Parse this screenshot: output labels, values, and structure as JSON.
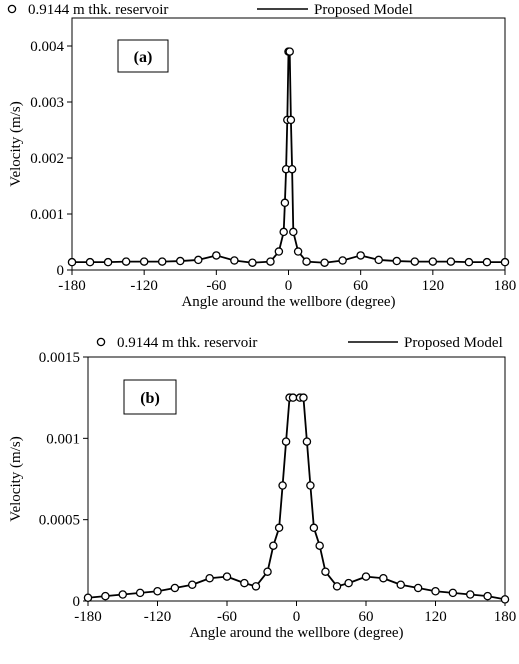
{
  "chart_data": [
    {
      "type": "line",
      "panel_label": "(a)",
      "xlabel": "Angle around the wellbore (degree)",
      "ylabel": "Velocity (m/s)",
      "xlim": [
        -180,
        180
      ],
      "ylim": [
        0,
        0.0045
      ],
      "x_ticks": [
        "-180",
        "-120",
        "-60",
        "0",
        "60",
        "120",
        "180"
      ],
      "y_ticks": [
        "0",
        "0.001",
        "0.002",
        "0.003",
        "0.004"
      ],
      "grid": false,
      "legend_position": "top",
      "series": [
        {
          "name": "0.9144 m thk. reservoir",
          "style": "markers",
          "x": [
            -180,
            -165,
            -150,
            -135,
            -120,
            -105,
            -90,
            -75,
            -60,
            -45,
            -30,
            -15,
            -8,
            -4,
            -3,
            -2,
            -1,
            0,
            1,
            2,
            3,
            4,
            8,
            15,
            30,
            45,
            60,
            75,
            90,
            105,
            120,
            135,
            150,
            165,
            180
          ],
          "y": [
            0.00014,
            0.00014,
            0.00014,
            0.00015,
            0.00015,
            0.00015,
            0.00016,
            0.00018,
            0.00026,
            0.00017,
            0.00013,
            0.00015,
            0.00033,
            0.00068,
            0.0012,
            0.0018,
            0.00268,
            0.0039,
            0.0039,
            0.00268,
            0.0018,
            0.00068,
            0.00033,
            0.00015,
            0.00013,
            0.00017,
            0.00026,
            0.00018,
            0.00016,
            0.00015,
            0.00015,
            0.00015,
            0.00014,
            0.00014,
            0.00014
          ]
        },
        {
          "name": "Proposed Model",
          "style": "line",
          "x": [
            -180,
            -165,
            -150,
            -135,
            -120,
            -105,
            -90,
            -75,
            -60,
            -45,
            -30,
            -15,
            -8,
            -4,
            -3,
            -2,
            -1,
            0,
            1,
            2,
            3,
            4,
            8,
            15,
            30,
            45,
            60,
            75,
            90,
            105,
            120,
            135,
            150,
            165,
            180
          ],
          "y": [
            0.00014,
            0.00014,
            0.00014,
            0.00015,
            0.00015,
            0.00015,
            0.00016,
            0.00018,
            0.00026,
            0.00017,
            0.00013,
            0.00015,
            0.00033,
            0.00068,
            0.0012,
            0.0018,
            0.00268,
            0.0039,
            0.0039,
            0.00268,
            0.0018,
            0.00068,
            0.00033,
            0.00015,
            0.00013,
            0.00017,
            0.00026,
            0.00018,
            0.00016,
            0.00015,
            0.00015,
            0.00015,
            0.00014,
            0.00014,
            0.00014
          ]
        }
      ]
    },
    {
      "type": "line",
      "panel_label": "(b)",
      "xlabel": "Angle around the wellbore (degree)",
      "ylabel": "Velocity (m/s)",
      "xlim": [
        -180,
        180
      ],
      "ylim": [
        0,
        0.0015
      ],
      "x_ticks": [
        "-180",
        "-120",
        "-60",
        "0",
        "60",
        "120",
        "180"
      ],
      "y_ticks": [
        "0",
        "0.0005",
        "0.001",
        "0.0015"
      ],
      "grid": false,
      "legend_position": "top",
      "series": [
        {
          "name": "0.9144 m thk. reservoir",
          "style": "markers",
          "x": [
            -180,
            -165,
            -150,
            -135,
            -120,
            -105,
            -90,
            -75,
            -60,
            -45,
            -35,
            -25,
            -20,
            -15,
            -12,
            -9,
            -6,
            -3,
            3,
            6,
            9,
            12,
            15,
            20,
            25,
            35,
            45,
            60,
            75,
            90,
            105,
            120,
            135,
            150,
            165,
            180
          ],
          "y": [
            2e-05,
            3e-05,
            4e-05,
            5e-05,
            6e-05,
            8e-05,
            0.0001,
            0.00014,
            0.00015,
            0.00011,
            9e-05,
            0.00018,
            0.00034,
            0.00045,
            0.00071,
            0.00098,
            0.00125,
            0.00125,
            0.00125,
            0.00125,
            0.00098,
            0.00071,
            0.00045,
            0.00034,
            0.00018,
            9e-05,
            0.00011,
            0.00015,
            0.00014,
            0.0001,
            8e-05,
            6e-05,
            5e-05,
            4e-05,
            3e-05,
            1e-05
          ]
        },
        {
          "name": "Proposed Model",
          "style": "line",
          "x": [
            -180,
            -165,
            -150,
            -135,
            -120,
            -105,
            -90,
            -75,
            -60,
            -45,
            -35,
            -25,
            -20,
            -15,
            -12,
            -9,
            -6,
            -3,
            3,
            6,
            9,
            12,
            15,
            20,
            25,
            35,
            45,
            60,
            75,
            90,
            105,
            120,
            135,
            150,
            165,
            180
          ],
          "y": [
            2e-05,
            3e-05,
            4e-05,
            5e-05,
            6e-05,
            8e-05,
            0.0001,
            0.00014,
            0.00015,
            0.00011,
            9e-05,
            0.00018,
            0.00034,
            0.00045,
            0.00071,
            0.00098,
            0.00125,
            0.00125,
            0.00125,
            0.00125,
            0.00098,
            0.00071,
            0.00045,
            0.00034,
            0.00018,
            9e-05,
            0.00011,
            0.00015,
            0.00014,
            0.0001,
            8e-05,
            6e-05,
            5e-05,
            4e-05,
            3e-05,
            1e-05
          ]
        }
      ]
    }
  ]
}
